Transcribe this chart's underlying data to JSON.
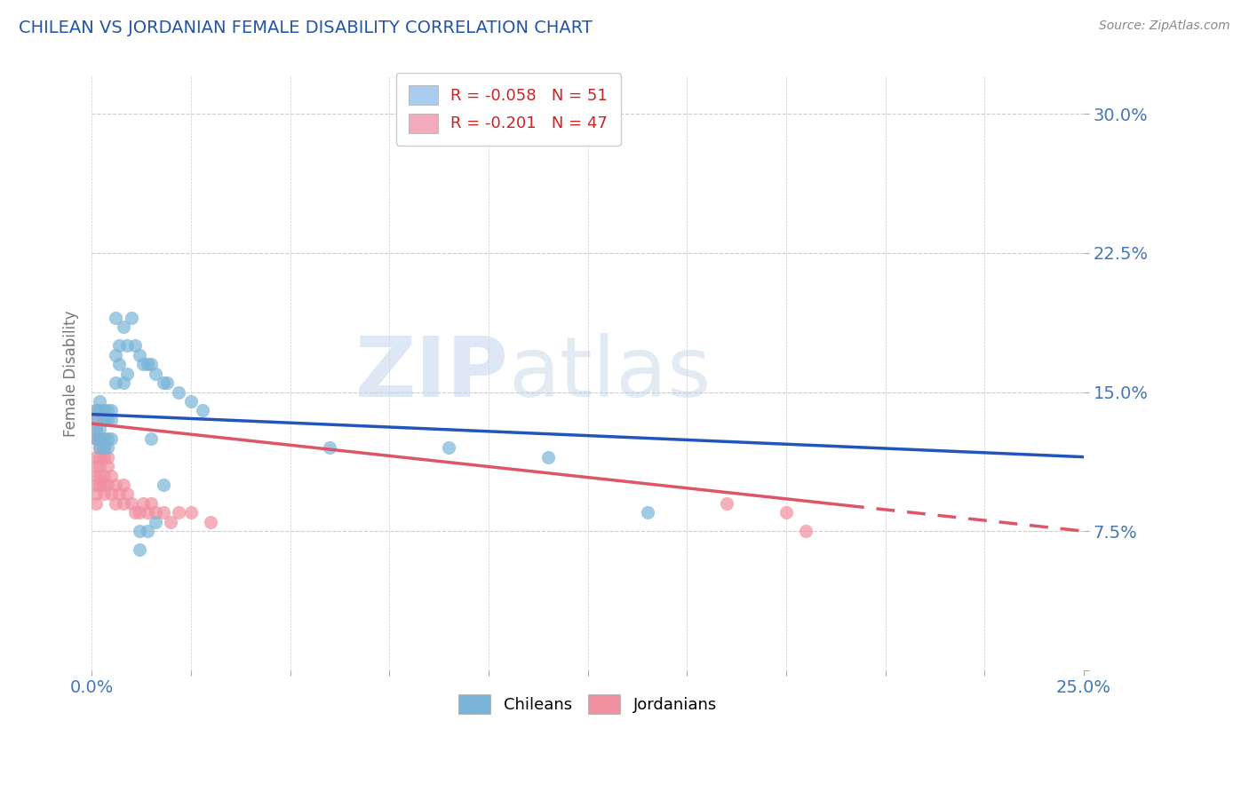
{
  "title": "CHILEAN VS JORDANIAN FEMALE DISABILITY CORRELATION CHART",
  "source": "Source: ZipAtlas.com",
  "ylabel": "Female Disability",
  "xlim": [
    0.0,
    0.25
  ],
  "ylim": [
    0.0,
    0.32
  ],
  "xticks": [
    0.0,
    0.025,
    0.05,
    0.075,
    0.1,
    0.125,
    0.15,
    0.175,
    0.2,
    0.225,
    0.25
  ],
  "xtick_labels_show": [
    "0.0%",
    "25.0%"
  ],
  "yticks": [
    0.0,
    0.075,
    0.15,
    0.225,
    0.3
  ],
  "ytick_labels": [
    "",
    "7.5%",
    "15.0%",
    "22.5%",
    "30.0%"
  ],
  "legend_r1": "R = -0.058",
  "legend_n1": "N = 51",
  "legend_r2": "R = -0.201",
  "legend_n2": "N = 47",
  "chileans_label": "Chileans",
  "jordanians_label": "Jordanians",
  "chilean_color": "#7ab4d8",
  "jordanian_color": "#f090a0",
  "trend_chilean_color": "#2255bb",
  "trend_jordanian_color": "#dd5566",
  "watermark_zip": "ZIP",
  "watermark_atlas": "atlas",
  "background_color": "#ffffff",
  "grid_color": "#cccccc",
  "title_color": "#2255aa",
  "axis_label_color": "#777777",
  "tick_color": "#4477bb",
  "legend_box_color1": "#aaccee",
  "legend_box_color2": "#f4aabb",
  "chilean_x": [
    0.001,
    0.001,
    0.001,
    0.001,
    0.002,
    0.002,
    0.002,
    0.002,
    0.002,
    0.003,
    0.003,
    0.003,
    0.003,
    0.004,
    0.004,
    0.004,
    0.004,
    0.005,
    0.005,
    0.005,
    0.006,
    0.006,
    0.006,
    0.007,
    0.007,
    0.008,
    0.008,
    0.009,
    0.009,
    0.01,
    0.011,
    0.012,
    0.013,
    0.014,
    0.015,
    0.016,
    0.018,
    0.019,
    0.022,
    0.025,
    0.028,
    0.015,
    0.012,
    0.012,
    0.014,
    0.016,
    0.018,
    0.115,
    0.14,
    0.09,
    0.06
  ],
  "chilean_y": [
    0.125,
    0.13,
    0.135,
    0.14,
    0.12,
    0.125,
    0.13,
    0.14,
    0.145,
    0.12,
    0.125,
    0.135,
    0.14,
    0.12,
    0.125,
    0.135,
    0.14,
    0.125,
    0.135,
    0.14,
    0.17,
    0.19,
    0.155,
    0.165,
    0.175,
    0.155,
    0.185,
    0.16,
    0.175,
    0.19,
    0.175,
    0.17,
    0.165,
    0.165,
    0.165,
    0.16,
    0.155,
    0.155,
    0.15,
    0.145,
    0.14,
    0.125,
    0.065,
    0.075,
    0.075,
    0.08,
    0.1,
    0.115,
    0.085,
    0.12,
    0.12
  ],
  "jordanian_x": [
    0.001,
    0.001,
    0.001,
    0.001,
    0.001,
    0.001,
    0.001,
    0.001,
    0.001,
    0.001,
    0.002,
    0.002,
    0.002,
    0.002,
    0.002,
    0.002,
    0.003,
    0.003,
    0.003,
    0.003,
    0.003,
    0.004,
    0.004,
    0.004,
    0.005,
    0.005,
    0.006,
    0.006,
    0.007,
    0.008,
    0.008,
    0.009,
    0.01,
    0.011,
    0.012,
    0.013,
    0.014,
    0.015,
    0.016,
    0.018,
    0.02,
    0.022,
    0.025,
    0.03,
    0.16,
    0.175,
    0.18
  ],
  "jordanian_y": [
    0.125,
    0.13,
    0.135,
    0.14,
    0.1,
    0.105,
    0.11,
    0.115,
    0.09,
    0.095,
    0.1,
    0.105,
    0.11,
    0.115,
    0.12,
    0.125,
    0.095,
    0.1,
    0.105,
    0.115,
    0.12,
    0.1,
    0.11,
    0.115,
    0.095,
    0.105,
    0.09,
    0.1,
    0.095,
    0.09,
    0.1,
    0.095,
    0.09,
    0.085,
    0.085,
    0.09,
    0.085,
    0.09,
    0.085,
    0.085,
    0.08,
    0.085,
    0.085,
    0.08,
    0.09,
    0.085,
    0.075
  ],
  "trend_chilean_x0": 0.0,
  "trend_chilean_y0": 0.138,
  "trend_chilean_x1": 0.25,
  "trend_chilean_y1": 0.115,
  "trend_jordanian_x0": 0.0,
  "trend_jordanian_y0": 0.133,
  "trend_jordanian_x1": 0.25,
  "trend_jordanian_y1": 0.075
}
